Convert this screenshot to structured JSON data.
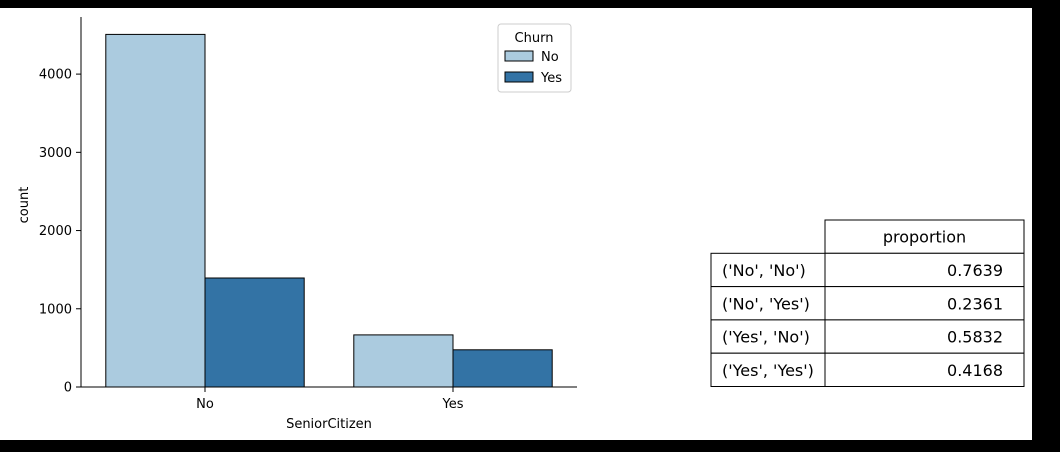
{
  "chart_data": [
    {
      "type": "bar",
      "categories": [
        "No",
        "Yes"
      ],
      "series": [
        {
          "name": "No",
          "values": [
            4508,
            666
          ],
          "color": "#abcbdf"
        },
        {
          "name": "Yes",
          "values": [
            1393,
            476
          ],
          "color": "#3373a5"
        }
      ],
      "xlabel": "SeniorCitizen",
      "ylabel": "count",
      "ylim": [
        0,
        4730
      ],
      "yticks": [
        0,
        1000,
        2000,
        3000,
        4000
      ],
      "legend": {
        "title": "Churn",
        "placement": "top-right"
      },
      "grid": false
    },
    {
      "type": "table",
      "columns": [
        "proportion"
      ],
      "rows": [
        {
          "label": "('No', 'No')",
          "value": "0.7639"
        },
        {
          "label": "('No', 'Yes')",
          "value": "0.2361"
        },
        {
          "label": "('Yes', 'No')",
          "value": "0.5832"
        },
        {
          "label": "('Yes', 'Yes')",
          "value": "0.4168"
        }
      ]
    }
  ]
}
